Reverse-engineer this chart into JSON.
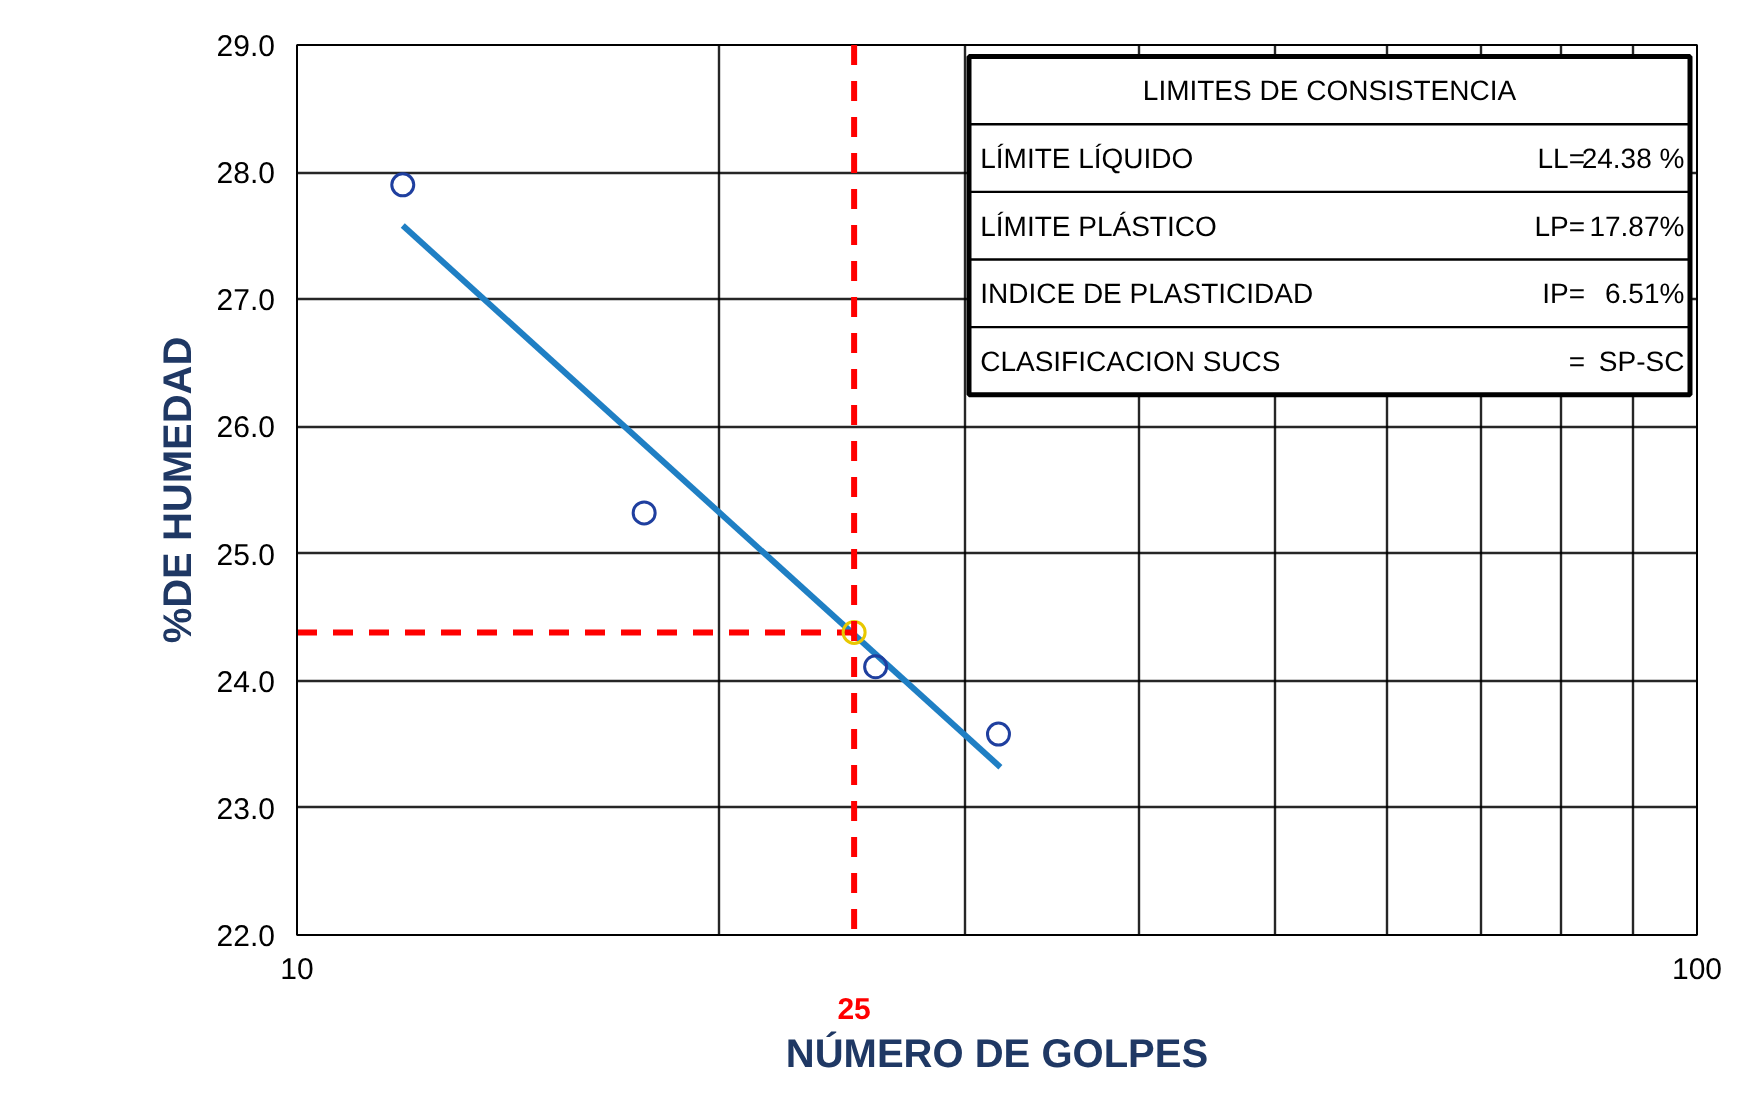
{
  "chart_data": {
    "type": "scatter",
    "xlabel": "NÚMERO DE GOLPES",
    "ylabel": "%DE HUMEDAD",
    "log": "x",
    "xlim": [
      10,
      100
    ],
    "ylim": [
      22,
      29
    ],
    "xticks": [
      10,
      {
        "value": 20,
        "label": null
      },
      {
        "value": 30,
        "label": null
      },
      {
        "value": 40,
        "label": null
      },
      {
        "value": 50,
        "label": null
      },
      {
        "value": 60,
        "label": null
      },
      {
        "value": 70,
        "label": null
      },
      {
        "value": 80,
        "label": null
      },
      {
        "value": 90,
        "label": null
      },
      100
    ],
    "yticks": [
      {
        "value": 22,
        "label": "22.0"
      },
      {
        "value": 23,
        "label": "23.0"
      },
      {
        "value": 24,
        "label": "24.0"
      },
      {
        "value": 25,
        "label": "25.0"
      },
      {
        "value": 26,
        "label": "26.0"
      },
      {
        "value": 27,
        "label": "27.0"
      },
      {
        "value": 28,
        "label": "28.0"
      },
      {
        "value": 29,
        "label": "29.0"
      }
    ],
    "grid": true,
    "series": [
      {
        "type": "line",
        "color": "#1f7fc4",
        "x": [
          11.9,
          31.8
        ],
        "values": [
          27.58,
          23.32
        ]
      },
      {
        "type": "line",
        "color": "#ff0000",
        "line_style": "dashed",
        "x": [
          10,
          25
        ],
        "values": [
          24.38,
          24.38
        ]
      },
      {
        "marker": "circle",
        "color": "#1f3f9f",
        "x": [
          11.9,
          17.7,
          25.9,
          31.7
        ],
        "values": [
          27.9,
          25.32,
          24.11,
          23.58
        ]
      },
      {
        "marker": "circle",
        "color": "#e8c800",
        "x": [
          25
        ],
        "values": [
          24.38
        ]
      }
    ],
    "ref_lines": [
      {
        "axis": "x",
        "value": 25,
        "label": "25",
        "color": "#ff0000",
        "line_style": "dashed"
      }
    ],
    "annotations": [
      "LIMITES DE CONSISTENCIA",
      "LÍMITE LÍQUIDO",
      "LL=",
      "24.38 %",
      "LÍMITE PLÁSTICO",
      "LP=",
      "17.87%",
      "INDICE DE PLASTICIDAD",
      "IP=",
      "6.51%",
      "CLASIFICACION SUCS",
      "=",
      "SP-SC"
    ]
  }
}
